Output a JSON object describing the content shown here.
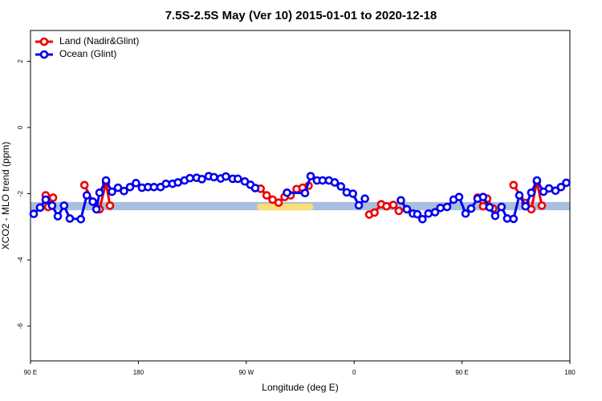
{
  "chart_data": {
    "type": "line",
    "title": "7.5S-2.5S May (Ver 10)   2015-01-01 to 2020-12-18",
    "xlabel": "Longitude (deg E)",
    "ylabel": "XCO2 - MLO trend (ppm)",
    "xlim": [
      90,
      540
    ],
    "xticks": [
      {
        "value": 90,
        "label": "90 E"
      },
      180,
      {
        "value": 270,
        "label": "90 W"
      },
      {
        "value": 360,
        "label": "0"
      },
      {
        "value": 450,
        "label": "90 E"
      },
      {
        "value": 540,
        "label": "180"
      }
    ],
    "ylim": [
      -7.05,
      2.93
    ],
    "yticks": [
      2,
      0,
      -2,
      -4,
      -6
    ],
    "legend": "top-left",
    "bands": [
      {
        "color": "#a8bfdf",
        "x": [
          90,
          540
        ],
        "lower": -2.5,
        "upper": -2.25
      },
      {
        "color": "#fddc7a",
        "x": [
          279,
          326
        ],
        "lower": -2.5,
        "upper": -2.3
      }
    ],
    "series": [
      {
        "name": "Land (Nadir&Glint)",
        "color": "#ee0000",
        "x": [
          102.7,
          104.7,
          108.8,
          null,
          135,
          142,
          147.6,
          153,
          156.3,
          null,
          277.5,
          282,
          287,
          292,
          297,
          302,
          307,
          312,
          317,
          322,
          null,
          372.6,
          377,
          382.6,
          387,
          392.7,
          397.3,
          null,
          463,
          467.6,
          471,
          476,
          null,
          493,
          503,
          507.8,
          512.5,
          516.6
        ],
        "values": [
          -2.05,
          -2.4,
          -2.12,
          null,
          -1.74,
          -2.24,
          -2.47,
          -1.66,
          -2.36,
          null,
          -1.83,
          -1.85,
          -2.05,
          -2.18,
          -2.27,
          -2.1,
          -2.05,
          -1.86,
          -1.82,
          -1.76,
          null,
          -2.63,
          -2.57,
          -2.32,
          -2.38,
          -2.34,
          -2.52,
          null,
          -2.12,
          -2.38,
          -2.15,
          -2.45,
          null,
          -1.74,
          -2.28,
          -2.47,
          -1.63,
          -2.36
        ]
      },
      {
        "name": "Ocean (Glint)",
        "color": "#0000ee",
        "x": [
          92.7,
          98,
          102.7,
          108,
          112.8,
          118,
          122.8,
          132,
          137,
          142,
          145,
          147.6,
          153,
          158,
          163,
          168,
          173,
          178,
          183,
          188,
          193,
          198.5,
          203,
          208.5,
          213,
          218.5,
          223,
          228.6,
          233,
          238.7,
          243,
          248.7,
          253,
          258.7,
          263,
          268.8,
          273.5,
          277.5,
          null,
          304,
          319,
          323.7,
          329,
          333.7,
          339,
          343.8,
          349,
          353.8,
          359,
          363.9,
          369,
          null,
          399,
          404,
          409,
          412.7,
          417,
          422,
          427.5,
          432,
          437.5,
          443,
          447.6,
          453,
          457.6,
          463,
          467.6,
          473,
          477.7,
          483,
          487.7,
          493,
          497.8,
          503,
          507.8,
          512.5,
          518,
          522.6,
          528,
          532.6,
          537
        ],
        "values": [
          -2.61,
          -2.42,
          -2.18,
          -2.36,
          -2.68,
          -2.36,
          -2.75,
          -2.77,
          -2.05,
          -2.24,
          -2.47,
          -1.97,
          -1.6,
          -1.94,
          -1.82,
          -1.92,
          -1.8,
          -1.68,
          -1.82,
          -1.8,
          -1.8,
          -1.8,
          -1.7,
          -1.7,
          -1.66,
          -1.6,
          -1.53,
          -1.52,
          -1.56,
          -1.47,
          -1.5,
          -1.54,
          -1.48,
          -1.55,
          -1.55,
          -1.63,
          -1.73,
          -1.83,
          null,
          -1.97,
          -1.98,
          -1.47,
          -1.6,
          -1.6,
          -1.6,
          -1.66,
          -1.78,
          -1.96,
          -2.0,
          -2.35,
          -2.15,
          null,
          -2.2,
          -2.47,
          -2.6,
          -2.62,
          -2.77,
          -2.6,
          -2.56,
          -2.43,
          -2.4,
          -2.18,
          -2.1,
          -2.6,
          -2.45,
          -2.15,
          -2.1,
          -2.41,
          -2.67,
          -2.4,
          -2.75,
          -2.76,
          -2.05,
          -2.38,
          -1.97,
          -1.6,
          -1.94,
          -1.84,
          -1.91,
          -1.8,
          -1.67
        ]
      }
    ]
  }
}
